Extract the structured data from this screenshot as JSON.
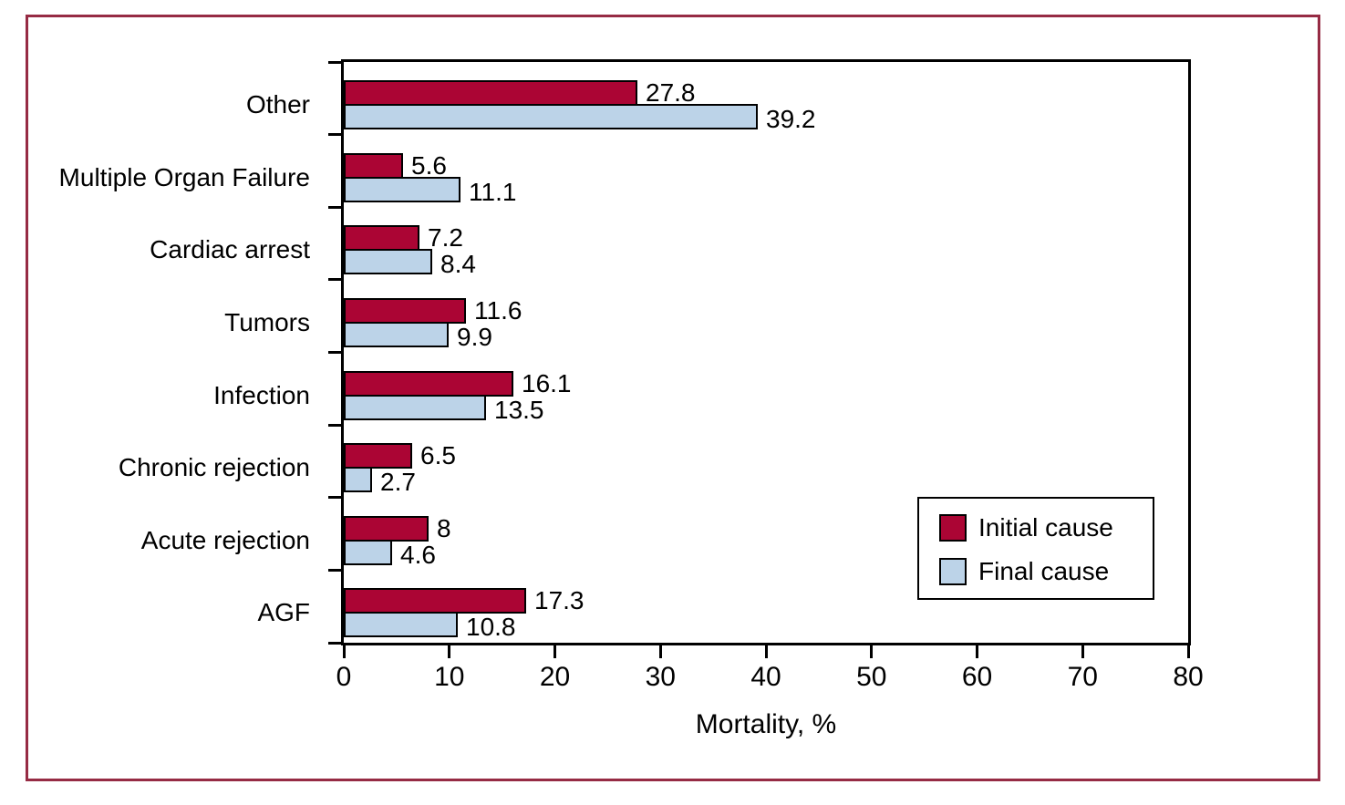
{
  "figure": {
    "border_color": "#962b44",
    "background_color": "#ffffff"
  },
  "chart_data": {
    "type": "bar",
    "orientation": "horizontal",
    "title": "",
    "xlabel": "Mortality, %",
    "ylabel": "",
    "xlim": [
      0,
      80
    ],
    "xticks": [
      0,
      10,
      20,
      30,
      40,
      50,
      60,
      70,
      80
    ],
    "xtick_labels": [
      "0",
      "10",
      "20",
      "30",
      "40",
      "50",
      "60",
      "70",
      "80"
    ],
    "grid": false,
    "categories": [
      "Other",
      "Multiple Organ Failure",
      "Cardiac arrest",
      "Tumors",
      "Infection",
      "Chronic rejection",
      "Acute rejection",
      "AGF"
    ],
    "series": [
      {
        "name": "Initial cause",
        "color": "#ab0534",
        "values": [
          27.8,
          5.6,
          7.2,
          11.6,
          16.1,
          6.5,
          8,
          17.3
        ],
        "value_labels": [
          "27.8",
          "5.6",
          "7.2",
          "11.6",
          "16.1",
          "6.5",
          "8",
          "17.3"
        ]
      },
      {
        "name": "Final cause",
        "color": "#bcd3e8",
        "values": [
          39.2,
          11.1,
          8.4,
          9.9,
          13.5,
          2.7,
          4.6,
          10.8
        ],
        "value_labels": [
          "39.2",
          "11.1",
          "8.4",
          "9.9",
          "13.5",
          "2.7",
          "4.6",
          "10.8"
        ]
      }
    ],
    "legend": {
      "position": "inside lower right",
      "entries": [
        {
          "label": "Initial cause",
          "color": "#ab0534"
        },
        {
          "label": "Final cause",
          "color": "#bcd3e8"
        }
      ]
    },
    "bar_outline_color": "#000000",
    "axis_color": "#000000"
  }
}
